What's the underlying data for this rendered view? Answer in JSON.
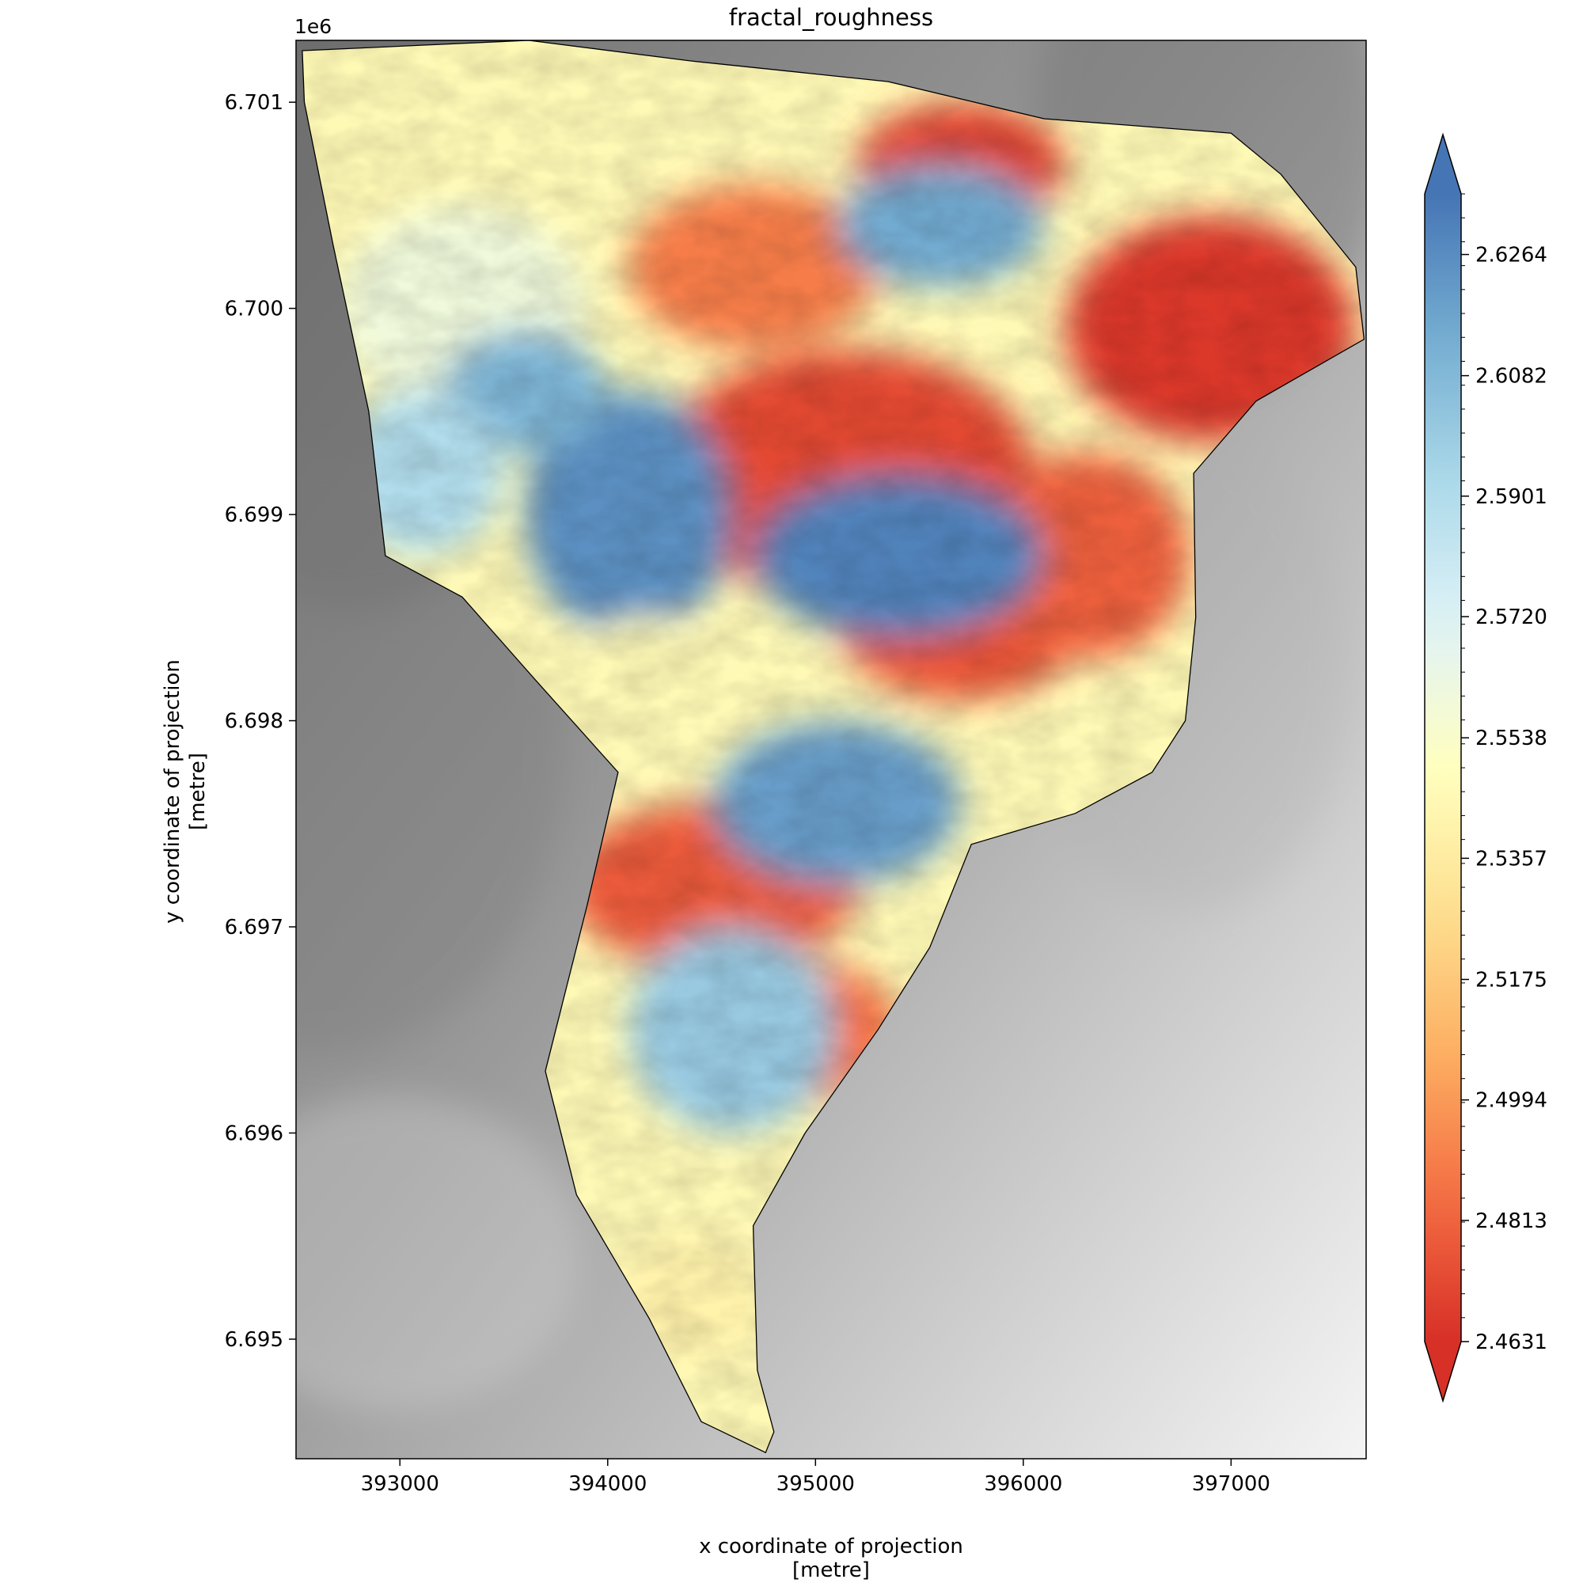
{
  "chart_data": {
    "type": "heatmap",
    "title": "fractal_roughness",
    "xlabel": "x coordinate of projection",
    "xlabel_units": "[metre]",
    "ylabel": "y coordinate of projection",
    "ylabel_units": "[metre]",
    "y_offset_label": "1e6",
    "xlim": [
      392500,
      397650
    ],
    "ylim": [
      6.69442,
      6.7013
    ],
    "x_ticks": [
      393000,
      394000,
      395000,
      396000,
      397000
    ],
    "x_tick_labels": [
      "393000",
      "394000",
      "395000",
      "396000",
      "397000"
    ],
    "y_ticks": [
      6.695,
      6.696,
      6.697,
      6.698,
      6.699,
      6.7,
      6.701
    ],
    "y_tick_labels": [
      "6.695",
      "6.696",
      "6.697",
      "6.698",
      "6.699",
      "6.700",
      "6.701"
    ],
    "colorbar": {
      "colormap": "RdYlBu",
      "extend": "both",
      "vmin": 2.4631,
      "vmax": 2.6355,
      "tick_values": [
        2.4631,
        2.4813,
        2.4994,
        2.5175,
        2.5357,
        2.5538,
        2.572,
        2.5901,
        2.6082,
        2.6264
      ],
      "tick_labels": [
        "2.4631",
        "2.4813",
        "2.4994",
        "2.5175",
        "2.5357",
        "2.5538",
        "2.5720",
        "2.5901",
        "2.6082",
        "2.6264"
      ]
    },
    "colors": {
      "low": "#d73027",
      "mid": "#ffffbf",
      "high": "#4575b4",
      "basemap_dark": "#707070",
      "basemap_light": "#f4f4f4",
      "outline": "#000000"
    },
    "outline_polygon": [
      [
        392530,
        6.70125
      ],
      [
        393620,
        6.7013
      ],
      [
        394400,
        6.7012
      ],
      [
        395350,
        6.7011
      ],
      [
        396100,
        6.70092
      ],
      [
        397000,
        6.70085
      ],
      [
        397240,
        6.70065
      ],
      [
        397600,
        6.7002
      ],
      [
        397640,
        6.69985
      ],
      [
        397120,
        6.69955
      ],
      [
        396820,
        6.6992
      ],
      [
        396830,
        6.6985
      ],
      [
        396780,
        6.698
      ],
      [
        396620,
        6.69775
      ],
      [
        396250,
        6.69755
      ],
      [
        395750,
        6.6974
      ],
      [
        395550,
        6.6969
      ],
      [
        395300,
        6.6965
      ],
      [
        394950,
        6.696
      ],
      [
        394700,
        6.69555
      ],
      [
        394720,
        6.69485
      ],
      [
        394800,
        6.69455
      ],
      [
        394760,
        6.69445
      ],
      [
        394450,
        6.6946
      ],
      [
        394200,
        6.6951
      ],
      [
        393850,
        6.6957
      ],
      [
        393700,
        6.6963
      ],
      [
        393900,
        6.6971
      ],
      [
        394050,
        6.69775
      ],
      [
        393650,
        6.6982
      ],
      [
        393300,
        6.6986
      ],
      [
        392930,
        6.6988
      ],
      [
        392850,
        6.6995
      ],
      [
        392680,
        6.7003
      ],
      [
        392540,
        6.701
      ]
    ],
    "value_blobs": [
      [
        396900,
        6.6999,
        700,
        0.00055,
        2.466
      ],
      [
        395700,
        6.7007,
        500,
        0.0003,
        2.47
      ],
      [
        395150,
        6.6992,
        900,
        0.0006,
        2.472
      ],
      [
        395700,
        6.6985,
        600,
        0.0004,
        2.475
      ],
      [
        394500,
        6.6972,
        700,
        0.0004,
        2.478
      ],
      [
        396300,
        6.6988,
        500,
        0.0005,
        2.48
      ],
      [
        394900,
        6.6965,
        500,
        0.00035,
        2.485
      ],
      [
        394700,
        6.7002,
        600,
        0.0004,
        2.49
      ],
      [
        395400,
        6.6988,
        700,
        0.0004,
        2.63
      ],
      [
        394100,
        6.699,
        500,
        0.0006,
        2.625
      ],
      [
        393300,
        6.7,
        600,
        0.0005,
        2.56
      ],
      [
        394200,
        6.6982,
        400,
        0.0003,
        2.545
      ],
      [
        395100,
        6.6976,
        600,
        0.0004,
        2.62
      ],
      [
        394600,
        6.6965,
        500,
        0.0005,
        2.6
      ],
      [
        393600,
        6.6996,
        400,
        0.0003,
        2.61
      ],
      [
        394400,
        6.6952,
        350,
        0.0003,
        2.54
      ],
      [
        395600,
        6.7004,
        500,
        0.0003,
        2.615
      ],
      [
        393100,
        6.6992,
        400,
        0.0004,
        2.59
      ]
    ]
  }
}
